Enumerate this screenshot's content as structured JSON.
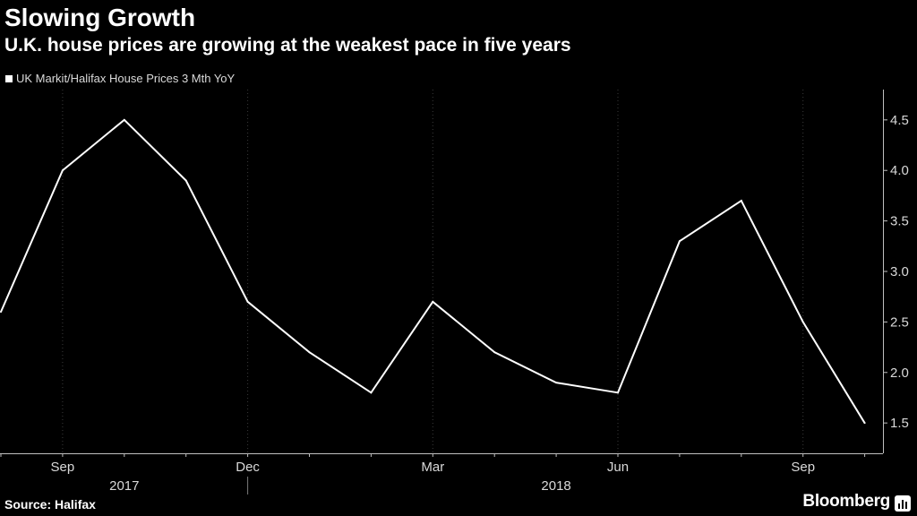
{
  "title": "Slowing Growth",
  "subtitle": "U.K. house prices are growing at the weakest pace in five years",
  "legend": {
    "label": "UK Markit/Halifax House Prices 3 Mth YoY"
  },
  "source": "Source: Halifax",
  "brand": "Bloomberg",
  "colors": {
    "background": "#000000",
    "line": "#ffffff",
    "grid": "#3a3a3a",
    "text": "#ffffff"
  },
  "chart_data": {
    "type": "line",
    "x": [
      "2017-08",
      "2017-09",
      "2017-10",
      "2017-11",
      "2017-12",
      "2018-01",
      "2018-02",
      "2018-03",
      "2018-04",
      "2018-05",
      "2018-06",
      "2018-07",
      "2018-08",
      "2018-09",
      "2018-10"
    ],
    "series": [
      {
        "name": "UK Markit/Halifax House Prices 3 Mth YoY",
        "values": [
          2.6,
          4.0,
          4.5,
          3.9,
          2.7,
          2.2,
          1.8,
          2.7,
          2.2,
          1.9,
          1.8,
          3.3,
          3.7,
          2.5,
          1.5
        ]
      }
    ],
    "ylim": [
      1.2,
      4.8
    ],
    "yticks": [
      "1.5",
      "2.0",
      "2.5",
      "3.0",
      "3.5",
      "4.0",
      "4.5"
    ],
    "xticks": [
      {
        "x": "2017-09",
        "label": "Sep"
      },
      {
        "x": "2017-12",
        "label": "Dec"
      },
      {
        "x": "2018-03",
        "label": "Mar"
      },
      {
        "x": "2018-06",
        "label": "Jun"
      },
      {
        "x": "2018-09",
        "label": "Sep"
      }
    ],
    "year_labels": [
      {
        "label": "2017"
      },
      {
        "label": "2018"
      }
    ],
    "y_axis_side": "right",
    "grid": "vertical-dotted"
  }
}
